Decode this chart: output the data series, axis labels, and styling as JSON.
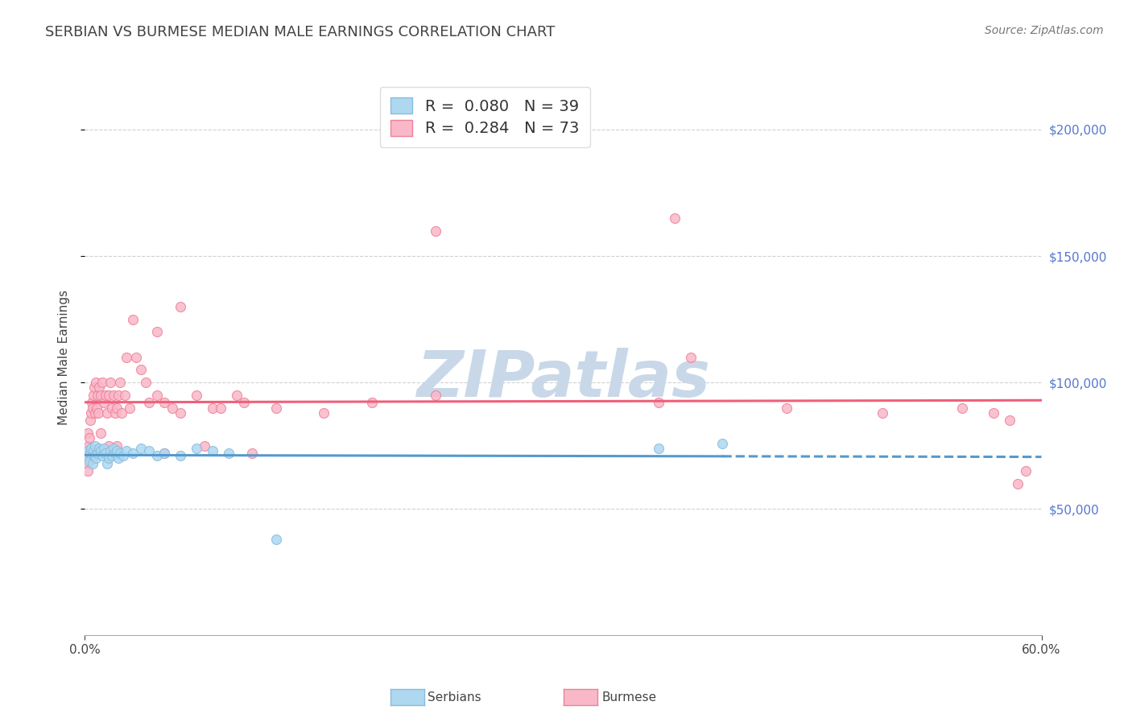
{
  "title": "SERBIAN VS BURMESE MEDIAN MALE EARNINGS CORRELATION CHART",
  "source": "Source: ZipAtlas.com",
  "ylabel": "Median Male Earnings",
  "right_yticks": [
    50000,
    100000,
    150000,
    200000
  ],
  "right_yticklabels": [
    "$50,000",
    "$100,000",
    "$150,000",
    "$200,000"
  ],
  "legend_label1": "R =  0.080   N = 39",
  "legend_label2": "R =  0.284   N = 73",
  "legend_series1": "Serbians",
  "legend_series2": "Burmese",
  "color_serbian": "#ADD8F0",
  "color_burmese": "#F9B8C8",
  "edge_serbian": "#88BBDD",
  "edge_burmese": "#EE8098",
  "line_serbian": "#5599CC",
  "line_burmese": "#EE607A",
  "watermark_color": "#C8D8E8",
  "background_color": "#FFFFFF",
  "grid_color": "#CCCCCC",
  "title_color": "#444444",
  "right_label_color": "#5577CC",
  "legend_value_color": "#4466CC",
  "xlim_min": 0,
  "xlim_max": 60,
  "ylim_min": 0,
  "ylim_max": 220000,
  "serbian_x": [
    0.1,
    0.2,
    0.3,
    0.35,
    0.4,
    0.5,
    0.55,
    0.6,
    0.65,
    0.7,
    0.8,
    0.9,
    1.0,
    1.1,
    1.2,
    1.3,
    1.4,
    1.5,
    1.6,
    1.7,
    1.8,
    1.9,
    2.0,
    2.1,
    2.2,
    2.4,
    2.6,
    3.0,
    3.5,
    4.0,
    4.5,
    5.0,
    6.0,
    7.0,
    8.0,
    9.0,
    12.0,
    36.0,
    40.0
  ],
  "serbian_y": [
    71000,
    73000,
    69000,
    72000,
    74000,
    68000,
    73000,
    71000,
    75000,
    70000,
    72000,
    74000,
    73000,
    71000,
    74000,
    72000,
    68000,
    70000,
    73000,
    71000,
    74000,
    72000,
    73000,
    70000,
    72000,
    71000,
    73000,
    72000,
    74000,
    73000,
    71000,
    72000,
    71000,
    74000,
    73000,
    72000,
    38000,
    74000,
    76000
  ],
  "burmese_x": [
    0.1,
    0.15,
    0.2,
    0.25,
    0.3,
    0.35,
    0.4,
    0.45,
    0.5,
    0.55,
    0.6,
    0.65,
    0.7,
    0.75,
    0.8,
    0.85,
    0.9,
    1.0,
    1.1,
    1.2,
    1.3,
    1.4,
    1.5,
    1.6,
    1.7,
    1.8,
    1.9,
    2.0,
    2.1,
    2.2,
    2.3,
    2.5,
    2.6,
    2.8,
    3.0,
    3.2,
    3.5,
    3.8,
    4.0,
    4.5,
    5.0,
    5.5,
    6.0,
    7.0,
    8.0,
    9.5,
    10.0,
    12.0,
    15.0,
    18.0,
    22.0,
    36.0,
    38.0,
    55.0,
    57.0,
    58.0,
    59.0,
    0.2,
    0.3,
    1.0,
    1.5,
    2.0,
    5.0,
    7.5,
    8.5,
    10.5,
    22.0,
    37.0,
    44.0,
    50.0,
    58.5,
    6.0,
    4.5
  ],
  "burmese_y": [
    72000,
    68000,
    80000,
    75000,
    78000,
    85000,
    88000,
    92000,
    90000,
    95000,
    98000,
    88000,
    100000,
    90000,
    95000,
    88000,
    98000,
    95000,
    100000,
    92000,
    95000,
    88000,
    95000,
    100000,
    90000,
    95000,
    88000,
    90000,
    95000,
    100000,
    88000,
    95000,
    110000,
    90000,
    125000,
    110000,
    105000,
    100000,
    92000,
    95000,
    92000,
    90000,
    88000,
    95000,
    90000,
    95000,
    92000,
    90000,
    88000,
    92000,
    95000,
    92000,
    110000,
    90000,
    88000,
    85000,
    65000,
    65000,
    72000,
    80000,
    75000,
    75000,
    72000,
    75000,
    90000,
    72000,
    160000,
    165000,
    90000,
    88000,
    60000,
    130000,
    120000
  ]
}
